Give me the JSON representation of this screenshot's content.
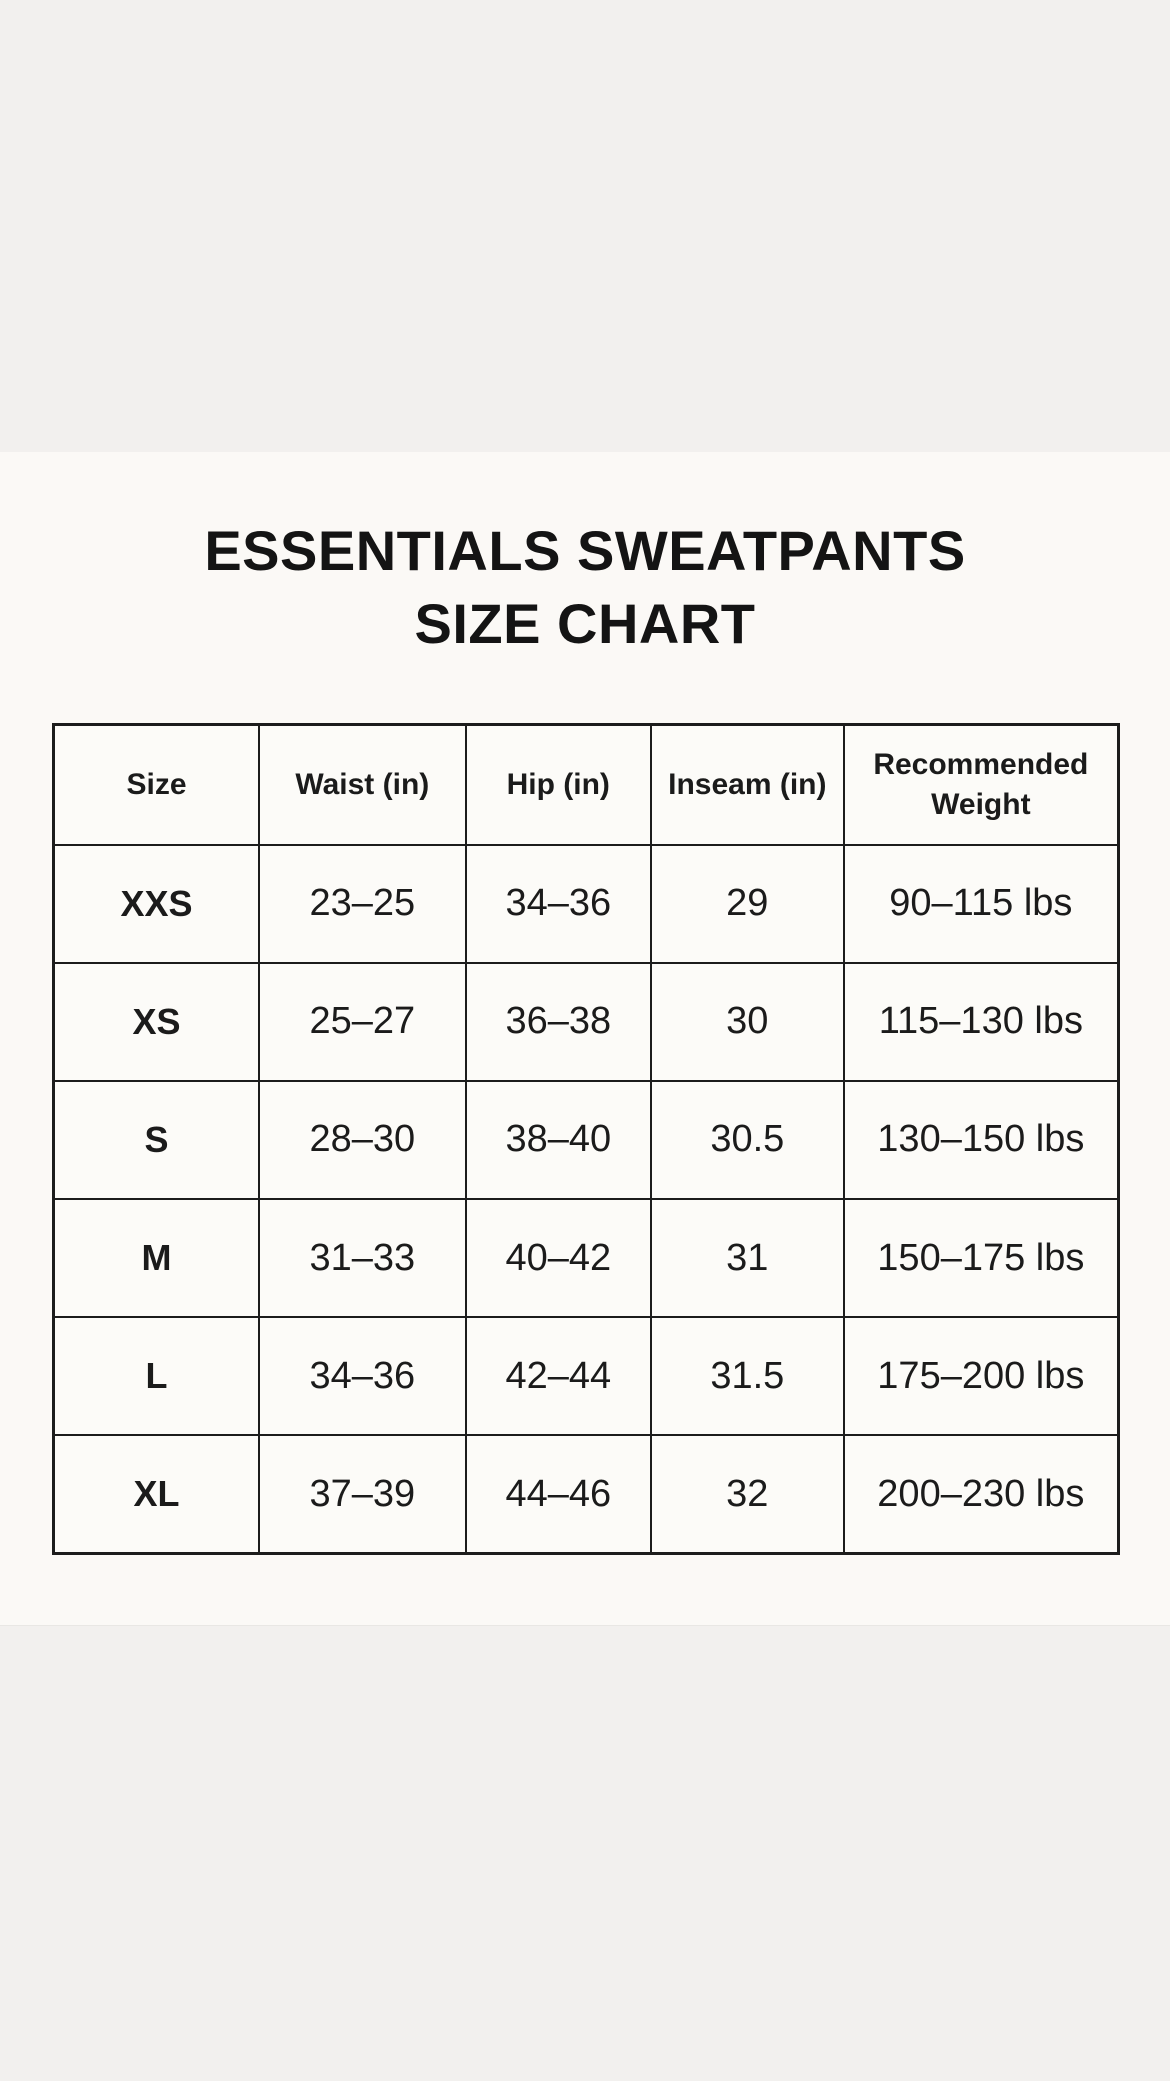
{
  "page": {
    "title_line1": "ESSENTIALS SWEATPANTS",
    "title_line2": "SIZE CHART"
  },
  "colors": {
    "band_gray": "#f2f0ee",
    "content_background": "#fbf9f6",
    "table_cell_background": "#fcfbf8",
    "table_border": "#1c1c1c",
    "text": "#1b1b1b"
  },
  "chart_data": {
    "type": "table",
    "title": "ESSENTIALS SWEATPANTS SIZE CHART",
    "columns": [
      "Size",
      "Waist (in)",
      "Hip (in)",
      "Inseam (in)",
      "Recommended Weight"
    ],
    "rows": [
      [
        "XXS",
        "23–25",
        "34–36",
        "29",
        "90–115 lbs"
      ],
      [
        "XS",
        "25–27",
        "36–38",
        "30",
        "115–130 lbs"
      ],
      [
        "S",
        "28–30",
        "38–40",
        "30.5",
        "130–150 lbs"
      ],
      [
        "M",
        "31–33",
        "40–42",
        "31",
        "150–175 lbs"
      ],
      [
        "L",
        "34–36",
        "42–44",
        "31.5",
        "175–200 lbs"
      ],
      [
        "XL",
        "37–39",
        "44–46",
        "32",
        "200–230 lbs"
      ]
    ]
  }
}
